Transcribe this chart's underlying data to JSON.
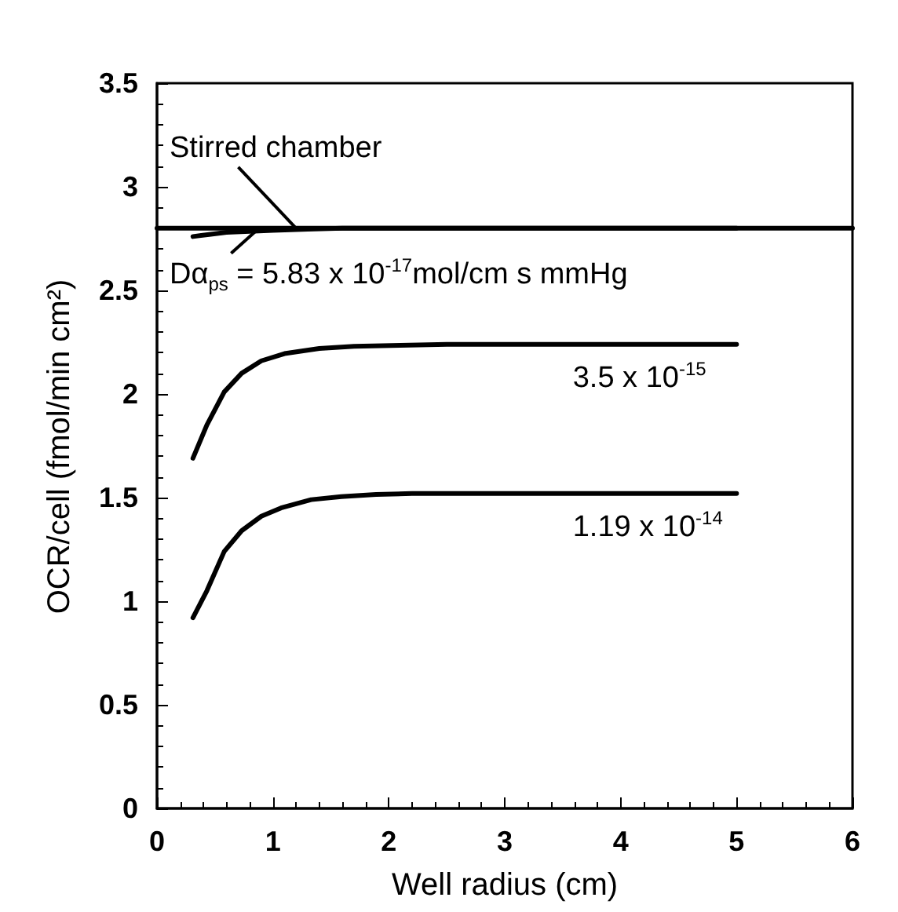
{
  "chart_data": {
    "type": "line",
    "xlabel": "Well radius (cm)",
    "ylabel": "OCR/cell (fmol/min cm²)",
    "xlim": [
      0,
      6
    ],
    "xticks": [
      0,
      1,
      2,
      3,
      4,
      5,
      6
    ],
    "ylim": [
      0,
      3.5
    ],
    "yticks": [
      0,
      0.5,
      1,
      1.5,
      2,
      2.5,
      3,
      3.5
    ],
    "grid": false,
    "marker": "none",
    "line_style": "solid",
    "series": [
      {
        "color": "#000000",
        "x": [
          0,
          6
        ],
        "values": [
          2.8,
          2.8
        ]
      },
      {
        "color": "#000000",
        "x": [
          0.31,
          0.45,
          0.6,
          0.8,
          1.0,
          1.3,
          1.6,
          2.0,
          5.0
        ],
        "values": [
          2.76,
          2.77,
          2.78,
          2.785,
          2.79,
          2.795,
          2.8,
          2.8,
          2.8
        ]
      },
      {
        "color": "#000000",
        "x": [
          0.31,
          0.43,
          0.58,
          0.73,
          0.9,
          1.1,
          1.4,
          1.7,
          2.1,
          2.5,
          5.0
        ],
        "values": [
          1.69,
          1.85,
          2.01,
          2.1,
          2.16,
          2.195,
          2.22,
          2.23,
          2.235,
          2.24,
          2.24
        ]
      },
      {
        "color": "#000000",
        "x": [
          0.31,
          0.43,
          0.58,
          0.73,
          0.9,
          1.07,
          1.33,
          1.59,
          1.89,
          2.2,
          5.0
        ],
        "values": [
          0.92,
          1.05,
          1.24,
          1.34,
          1.41,
          1.45,
          1.49,
          1.505,
          1.515,
          1.52,
          1.52
        ]
      }
    ],
    "annotations": [
      {
        "text": "Stirred chamber",
        "x": 1.2,
        "y": 2.8
      },
      {
        "text": "Dα$_{ps}$ = 5.83 x 10$^{-17}$mol/cm s mmHg",
        "x": 0.85,
        "y": 2.785
      },
      {
        "text": "3.5 x 10$^{-15}$",
        "x": 4.4,
        "y": 2.24
      },
      {
        "text": "1.19 x 10$^{-14}$",
        "x": 4.4,
        "y": 1.52
      }
    ]
  }
}
